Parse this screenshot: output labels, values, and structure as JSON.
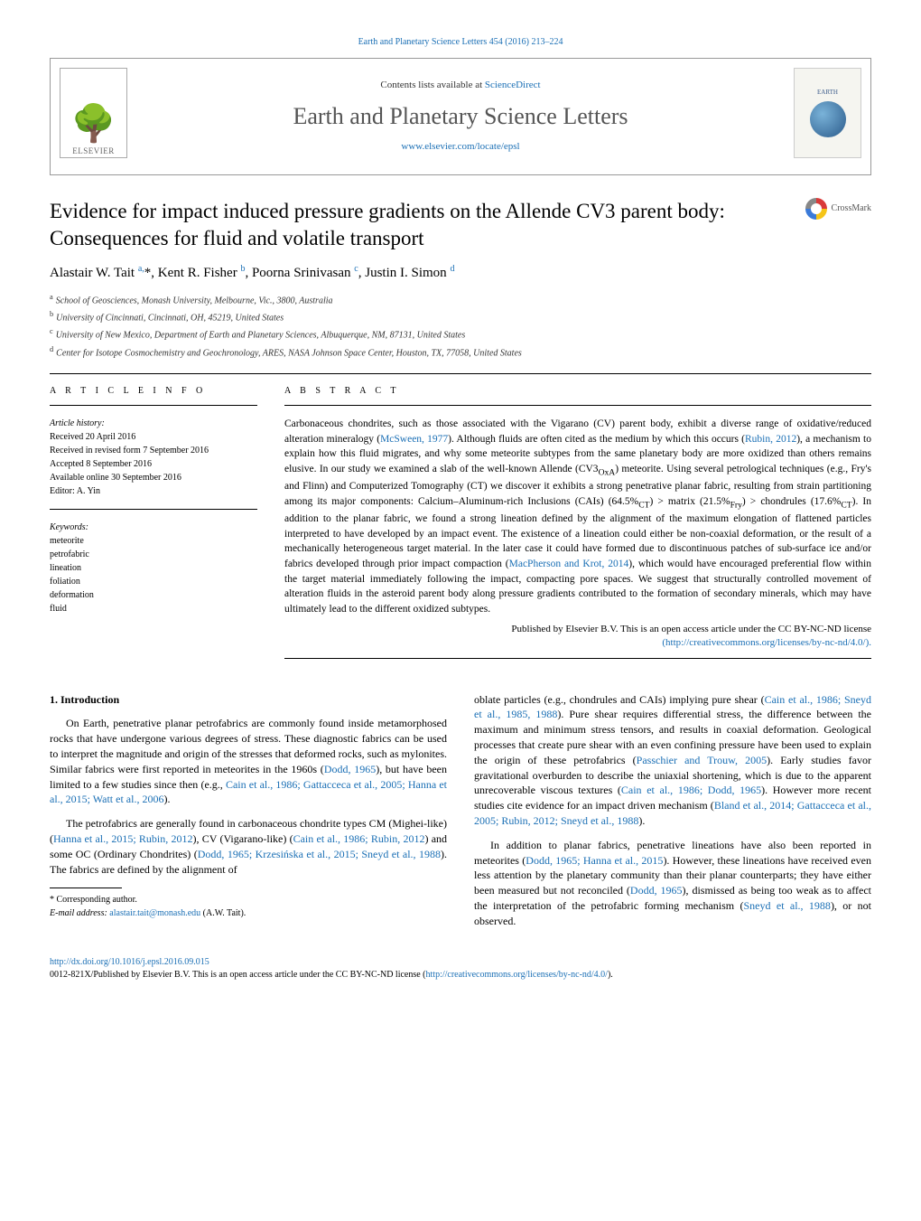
{
  "journal": {
    "citation_line": "Earth and Planetary Science Letters 454 (2016) 213–224",
    "contents_prefix": "Contents lists available at ",
    "contents_link": "ScienceDirect",
    "name": "Earth and Planetary Science Letters",
    "url": "www.elsevier.com/locate/epsl",
    "publisher": "ELSEVIER",
    "cover_text": "EARTH"
  },
  "crossmark": {
    "label": "CrossMark"
  },
  "article": {
    "title": "Evidence for impact induced pressure gradients on the Allende CV3 parent body: Consequences for fluid and volatile transport",
    "authors_html": "Alastair W. Tait <sup>a,</sup>*, Kent R. Fisher <sup>b</sup>, Poorna Srinivasan <sup>c</sup>, Justin I. Simon <sup>d</sup>",
    "affiliations": [
      {
        "sup": "a",
        "text": "School of Geosciences, Monash University, Melbourne, Vic., 3800, Australia"
      },
      {
        "sup": "b",
        "text": "University of Cincinnati, Cincinnati, OH, 45219, United States"
      },
      {
        "sup": "c",
        "text": "University of New Mexico, Department of Earth and Planetary Sciences, Albuquerque, NM, 87131, United States"
      },
      {
        "sup": "d",
        "text": "Center for Isotope Cosmochemistry and Geochronology, ARES, NASA Johnson Space Center, Houston, TX, 77058, United States"
      }
    ]
  },
  "article_info": {
    "heading": "A R T I C L E   I N F O",
    "history_label": "Article history:",
    "history": [
      "Received 20 April 2016",
      "Received in revised form 7 September 2016",
      "Accepted 8 September 2016",
      "Available online 30 September 2016",
      "Editor: A. Yin"
    ],
    "keywords_label": "Keywords:",
    "keywords": [
      "meteorite",
      "petrofabric",
      "lineation",
      "foliation",
      "deformation",
      "fluid"
    ]
  },
  "abstract": {
    "heading": "A B S T R A C T",
    "text_html": "Carbonaceous chondrites, such as those associated with the Vigarano (CV) parent body, exhibit a diverse range of oxidative/reduced alteration mineralogy (<a href='#'>McSween, 1977</a>). Although fluids are often cited as the medium by which this occurs (<a href='#'>Rubin, 2012</a>), a mechanism to explain how this fluid migrates, and why some meteorite subtypes from the same planetary body are more oxidized than others remains elusive. In our study we examined a slab of the well-known Allende (CV3<sub>OxA</sub>) meteorite. Using several petrological techniques (e.g., Fry's and Flinn) and Computerized Tomography (CT) we discover it exhibits a strong penetrative planar fabric, resulting from strain partitioning among its major components: Calcium–Aluminum-rich Inclusions (CAIs) (64.5%<sub>CT</sub>) > matrix (21.5%<sub>Fry</sub>) > chondrules (17.6%<sub>CT</sub>). In addition to the planar fabric, we found a strong lineation defined by the alignment of the maximum elongation of flattened particles interpreted to have developed by an impact event. The existence of a lineation could either be non-coaxial deformation, or the result of a mechanically heterogeneous target material. In the later case it could have formed due to discontinuous patches of sub-surface ice and/or fabrics developed through prior impact compaction (<a href='#'>MacPherson and Krot, 2014</a>), which would have encouraged preferential flow within the target material immediately following the impact, compacting pore spaces. We suggest that structurally controlled movement of alteration fluids in the asteroid parent body along pressure gradients contributed to the formation of secondary minerals, which may have ultimately lead to the different oxidized subtypes.",
    "copyright": "Published by Elsevier B.V. This is an open access article under the CC BY-NC-ND license",
    "license_url": "(http://creativecommons.org/licenses/by-nc-nd/4.0/)."
  },
  "body": {
    "section1_heading": "1. Introduction",
    "col1_p1": "On Earth, penetrative planar petrofabrics are commonly found inside metamorphosed rocks that have undergone various degrees of stress. These diagnostic fabrics can be used to interpret the magnitude and origin of the stresses that deformed rocks, such as mylonites. Similar fabrics were first reported in meteorites in the 1960s (<a href='#'>Dodd, 1965</a>), but have been limited to a few studies since then (e.g., <a href='#'>Cain et al., 1986; Gattacceca et al., 2005; Hanna et al., 2015; Watt et al., 2006</a>).",
    "col1_p2": "The petrofabrics are generally found in carbonaceous chondrite types CM (Mighei-like) (<a href='#'>Hanna et al., 2015; Rubin, 2012</a>), CV (Vigarano-like) (<a href='#'>Cain et al., 1986; Rubin, 2012</a>) and some OC (Ordinary Chondrites) (<a href='#'>Dodd, 1965; Krzesińska et al., 2015; Sneyd et al., 1988</a>). The fabrics are defined by the alignment of",
    "col2_p1": "oblate particles (e.g., chondrules and CAIs) implying pure shear (<a href='#'>Cain et al., 1986; Sneyd et al., 1985, 1988</a>). Pure shear requires differential stress, the difference between the maximum and minimum stress tensors, and results in coaxial deformation. Geological processes that create pure shear with an even confining pressure have been used to explain the origin of these petrofabrics (<a href='#'>Passchier and Trouw, 2005</a>). Early studies favor gravitational overburden to describe the uniaxial shortening, which is due to the apparent unrecoverable viscous textures (<a href='#'>Cain et al., 1986; Dodd, 1965</a>). However more recent studies cite evidence for an impact driven mechanism (<a href='#'>Bland et al., 2014; Gattacceca et al., 2005; Rubin, 2012; Sneyd et al., 1988</a>).",
    "col2_p2": "In addition to planar fabrics, penetrative lineations have also been reported in meteorites (<a href='#'>Dodd, 1965; Hanna et al., 2015</a>). However, these lineations have received even less attention by the planetary community than their planar counterparts; they have either been measured but not reconciled (<a href='#'>Dodd, 1965</a>), dismissed as being too weak as to affect the interpretation of the petrofabric forming mechanism (<a href='#'>Sneyd et al., 1988</a>), or not observed."
  },
  "footnotes": {
    "corresponding": "* Corresponding author.",
    "email_label": "E-mail address:",
    "email": "alastair.tait@monash.edu",
    "email_suffix": "(A.W. Tait)."
  },
  "footer": {
    "doi": "http://dx.doi.org/10.1016/j.epsl.2016.09.015",
    "issn_line": "0012-821X/Published by Elsevier B.V. This is an open access article under the CC BY-NC-ND license (",
    "issn_link": "http://creativecommons.org/licenses/by-nc-nd/4.0/",
    "issn_suffix": ")."
  }
}
